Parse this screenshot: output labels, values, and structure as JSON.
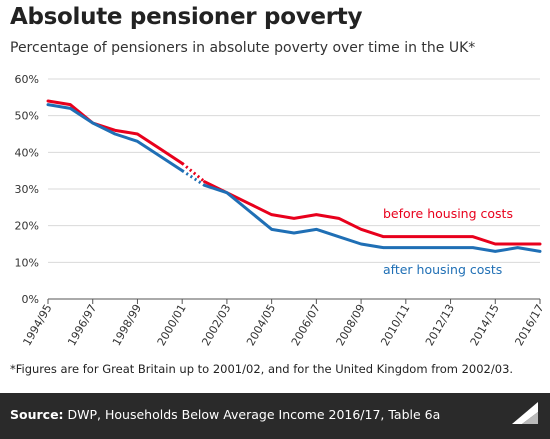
{
  "header": {
    "title": "Absolute pensioner poverty",
    "subtitle": "Percentage of pensioners in absolute poverty over time in the UK*"
  },
  "footnote": "*Figures are for Great Britain up to 2001/02, and for the United Kingdom from 2002/03.",
  "source": {
    "label": "Source:",
    "text": "DWP, Households Below Average Income 2016/17, Table 6a"
  },
  "logo": {
    "text": "Full Fact"
  },
  "colors": {
    "before": "#e8001c",
    "after": "#1f6fb5",
    "grid": "#d9d9d9",
    "axis": "#555555"
  },
  "chart_data": {
    "type": "line",
    "ylim": [
      0,
      60
    ],
    "yticks": [
      "0%",
      "10%",
      "20%",
      "30%",
      "40%",
      "50%",
      "60%"
    ],
    "ytick_values": [
      0,
      10,
      20,
      30,
      40,
      50,
      60
    ],
    "x_tick_labels": [
      "1994/95",
      "1996/97",
      "1998/99",
      "2000/01",
      "2002/03",
      "2004/05",
      "2006/07",
      "2008/09",
      "2010/11",
      "2012/13",
      "2014/15",
      "2016/17"
    ],
    "x_tick_indices": [
      0,
      2,
      4,
      6,
      8,
      10,
      12,
      14,
      16,
      18,
      20,
      22
    ],
    "x": [
      "1994/95",
      "1995/96",
      "1996/97",
      "1997/98",
      "1998/99",
      "1999/00",
      "2000/01",
      "2001/02",
      "2002/03",
      "2003/04",
      "2004/05",
      "2005/06",
      "2006/07",
      "2007/08",
      "2008/09",
      "2009/10",
      "2010/11",
      "2011/12",
      "2012/13",
      "2013/14",
      "2014/15",
      "2015/16",
      "2016/17"
    ],
    "series": [
      {
        "name": "before housing costs",
        "color_key": "before",
        "values": [
          54,
          53,
          48,
          46,
          45,
          41,
          37,
          32,
          29,
          26,
          23,
          22,
          23,
          22,
          19,
          17,
          17,
          17,
          17,
          17,
          15,
          15,
          15
        ]
      },
      {
        "name": "after housing costs",
        "color_key": "after",
        "values": [
          53,
          52,
          48,
          45,
          43,
          39,
          35,
          31,
          29,
          24,
          19,
          18,
          19,
          17,
          15,
          14,
          14,
          14,
          14,
          14,
          13,
          14,
          13
        ]
      }
    ],
    "break_after_index": 6,
    "grid": true
  }
}
